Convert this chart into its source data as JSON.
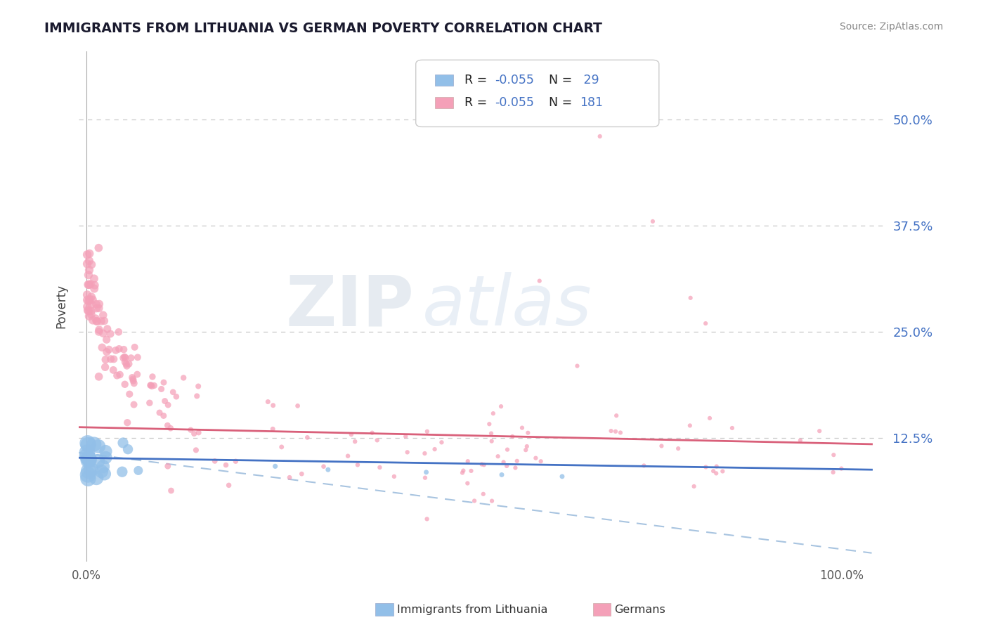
{
  "title": "IMMIGRANTS FROM LITHUANIA VS GERMAN POVERTY CORRELATION CHART",
  "source": "Source: ZipAtlas.com",
  "ylabel": "Poverty",
  "watermark_zip": "ZIP",
  "watermark_atlas": "atlas",
  "y_ticks": [
    0.125,
    0.25,
    0.375,
    0.5
  ],
  "y_tick_labels": [
    "12.5%",
    "25.0%",
    "37.5%",
    "50.0%"
  ],
  "xlim": [
    -0.01,
    1.06
  ],
  "ylim": [
    -0.02,
    0.58
  ],
  "blue_line_y_start": 0.102,
  "blue_line_y_end": 0.088,
  "pink_line_y_start": 0.138,
  "pink_line_y_end": 0.118,
  "dash_line_y_start": 0.108,
  "dash_line_y_end": -0.01,
  "background_color": "#ffffff",
  "grid_color": "#c8c8c8",
  "blue_color": "#92bfe8",
  "pink_color": "#f4a0b8",
  "blue_line_color": "#4472c4",
  "pink_line_color": "#d9607a",
  "dash_line_color": "#a8c4e0",
  "right_label_color": "#4472c4",
  "title_color": "#1a1a2e",
  "source_color": "#888888"
}
